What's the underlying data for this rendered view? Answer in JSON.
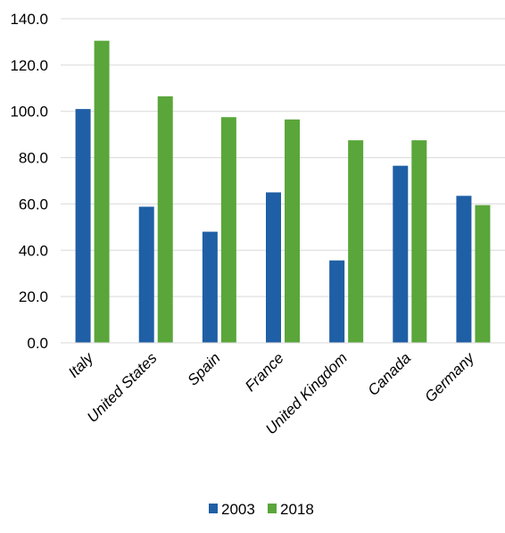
{
  "chart_data": {
    "type": "bar",
    "title": "",
    "xlabel": "",
    "ylabel": "",
    "categories": [
      "Italy",
      "United States",
      "Spain",
      "France",
      "United Kingdom",
      "Canada",
      "Germany"
    ],
    "series": [
      {
        "name": "2003",
        "color": "#1f5fa5",
        "values": [
          101.0,
          58.8,
          48.0,
          65.0,
          35.6,
          76.5,
          63.5
        ]
      },
      {
        "name": "2018",
        "color": "#5aa63a",
        "values": [
          130.5,
          106.5,
          97.5,
          96.5,
          87.5,
          87.5,
          59.5
        ]
      }
    ],
    "ylim": [
      0,
      140
    ],
    "yticks": [
      "0.0",
      "20.0",
      "40.0",
      "60.0",
      "80.0",
      "100.0",
      "120.0",
      "140.0"
    ],
    "grid": true,
    "gridline_color": "#d9d9d9",
    "legend_position": "bottom"
  }
}
